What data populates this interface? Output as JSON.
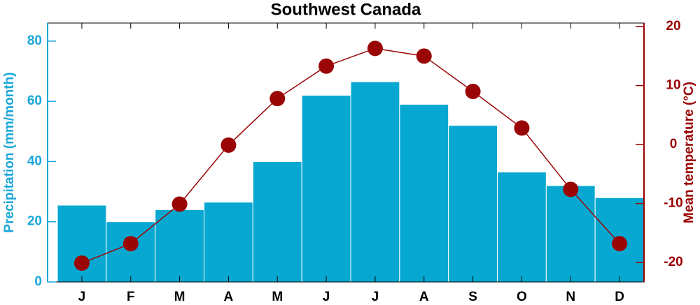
{
  "chart_data": {
    "type": "bar",
    "title": "Southwest Canada",
    "ylabel": "Precipitation (mm/month)",
    "y2label": "Mean temperature (°C)",
    "categories": [
      "J",
      "F",
      "M",
      "A",
      "M",
      "J",
      "J",
      "A",
      "S",
      "O",
      "N",
      "D"
    ],
    "series": [
      {
        "type": "bar",
        "color": "#06a8d1",
        "axis": "y",
        "values": [
          25.5,
          20,
          24,
          26.5,
          40,
          62,
          66.5,
          59,
          52,
          36.5,
          32,
          28
        ]
      },
      {
        "type": "line",
        "color": "#9a0505",
        "axis": "y2",
        "values": [
          -20.1,
          -16.8,
          -10.1,
          -0.1,
          7.8,
          13.3,
          16.3,
          15.0,
          9.0,
          2.8,
          -7.6,
          -16.8
        ]
      }
    ],
    "ylim": [
      0,
      86
    ],
    "yticks": [
      0,
      20,
      40,
      60,
      80
    ],
    "ycolor": "#1aa7d8",
    "y2lim": [
      -23.3,
      20.6
    ],
    "y2ticks": [
      -20,
      -10,
      0,
      10,
      20
    ],
    "y2color": "#990000"
  }
}
